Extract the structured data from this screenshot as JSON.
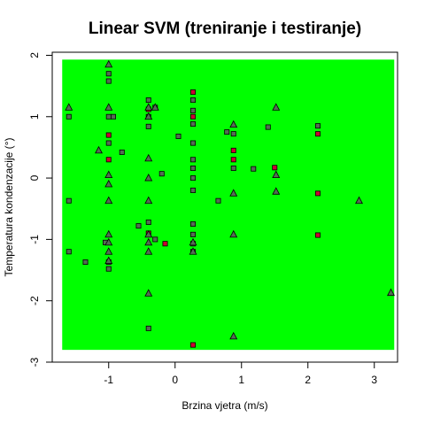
{
  "chart_data": {
    "type": "scatter",
    "title": "Linear SVM (treniranje i testiranje)",
    "xlabel": "Brzina vjetra (m/s)",
    "ylabel": "Temperatura kondenzacije (°)",
    "xlim": [
      -1.85,
      3.35
    ],
    "ylim": [
      -3.0,
      2.05
    ],
    "xticks": [
      -1,
      0,
      1,
      2,
      3
    ],
    "xtick_labels": [
      "-1",
      "0",
      "1",
      "2",
      "3"
    ],
    "yticks": [
      -3,
      -2,
      -1,
      0,
      1,
      2
    ],
    "ytick_labels": [
      "-3",
      "-2",
      "-1",
      "0",
      "1",
      "2"
    ],
    "grid": false,
    "legend": "none",
    "decision_region": {
      "color": "#00ff00",
      "x": [
        -1.7,
        3.3
      ],
      "y": [
        -2.8,
        1.93
      ]
    },
    "marker_colors": {
      "class_a": "#556b55",
      "class_b": "#cc0033"
    },
    "series": [
      {
        "marker": "square",
        "points": [
          [
            -1.0,
            1.7
          ],
          [
            -1.0,
            1.58
          ],
          [
            -1.0,
            1.0
          ],
          [
            -0.93,
            1.0
          ],
          [
            -1.6,
            1.0
          ],
          [
            -1.0,
            0.57
          ],
          [
            -0.8,
            0.42
          ],
          [
            -1.6,
            -0.37
          ],
          [
            -1.6,
            -1.2
          ],
          [
            -1.35,
            -1.37
          ],
          [
            -1.0,
            -1.37
          ],
          [
            -1.0,
            -1.48
          ],
          [
            -0.55,
            -0.78
          ],
          [
            -0.4,
            1.27
          ],
          [
            -0.4,
            1.0
          ],
          [
            -0.4,
            0.84
          ],
          [
            -0.4,
            -0.72
          ],
          [
            -0.4,
            -2.45
          ],
          [
            -0.3,
            1.15
          ],
          [
            -0.2,
            0.07
          ],
          [
            -0.3,
            -1.0
          ],
          [
            0.05,
            0.68
          ],
          [
            0.27,
            1.27
          ],
          [
            0.27,
            1.1
          ],
          [
            0.27,
            0.88
          ],
          [
            0.27,
            0.57
          ],
          [
            0.27,
            0.3
          ],
          [
            0.27,
            0.16
          ],
          [
            0.27,
            0.0
          ],
          [
            0.27,
            -0.2
          ],
          [
            0.27,
            -0.75
          ],
          [
            0.27,
            -0.92
          ],
          [
            0.27,
            -1.07
          ],
          [
            0.27,
            -1.2
          ],
          [
            0.65,
            -0.37
          ],
          [
            0.78,
            0.75
          ],
          [
            0.88,
            0.72
          ],
          [
            0.88,
            0.16
          ],
          [
            1.18,
            0.15
          ],
          [
            1.4,
            0.83
          ],
          [
            2.15,
            0.85
          ],
          [
            -1.05,
            -1.05
          ]
        ]
      },
      {
        "marker": "square-red",
        "points": [
          [
            0.27,
            1.4
          ],
          [
            0.27,
            1.0
          ],
          [
            -0.4,
            1.12
          ],
          [
            -1.0,
            0.7
          ],
          [
            -1.0,
            0.3
          ],
          [
            0.88,
            0.45
          ],
          [
            0.88,
            0.3
          ],
          [
            1.5,
            0.17
          ],
          [
            2.15,
            0.72
          ],
          [
            2.15,
            -0.25
          ],
          [
            2.15,
            -0.93
          ],
          [
            -0.15,
            -1.07
          ],
          [
            -0.4,
            -0.9
          ],
          [
            0.27,
            -2.72
          ]
        ]
      },
      {
        "marker": "triangle",
        "points": [
          [
            -1.0,
            1.85
          ],
          [
            -1.6,
            1.15
          ],
          [
            -1.0,
            1.15
          ],
          [
            -0.4,
            1.15
          ],
          [
            -0.4,
            1.0
          ],
          [
            -0.3,
            1.15
          ],
          [
            0.88,
            0.87
          ],
          [
            1.52,
            1.15
          ],
          [
            -1.15,
            0.45
          ],
          [
            -1.0,
            0.05
          ],
          [
            -1.0,
            -0.1
          ],
          [
            -1.0,
            -0.37
          ],
          [
            -0.4,
            0.32
          ],
          [
            -0.4,
            0.0
          ],
          [
            -0.4,
            -0.37
          ],
          [
            -0.4,
            -0.92
          ],
          [
            -0.4,
            -1.05
          ],
          [
            -0.4,
            -1.2
          ],
          [
            -1.0,
            -0.92
          ],
          [
            -1.0,
            -1.05
          ],
          [
            -1.0,
            -1.2
          ],
          [
            -1.0,
            -1.35
          ],
          [
            0.27,
            -1.05
          ],
          [
            0.27,
            -1.2
          ],
          [
            0.88,
            -0.25
          ],
          [
            0.88,
            -0.92
          ],
          [
            0.88,
            -2.58
          ],
          [
            1.52,
            0.05
          ],
          [
            1.52,
            -0.22
          ],
          [
            2.77,
            -0.37
          ],
          [
            3.25,
            -1.87
          ],
          [
            -0.4,
            -1.88
          ]
        ]
      }
    ]
  }
}
